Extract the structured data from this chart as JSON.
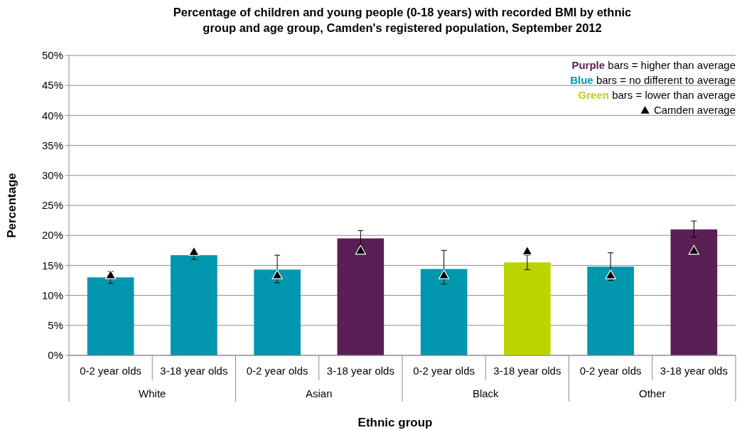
{
  "chart_data": {
    "type": "bar",
    "title": "Percentage of children and young people (0-18 years) with recorded BMI by ethnic group and age group, Camden's registered population, September 2012",
    "xlabel": "Ethnic group",
    "ylabel": "Percentage",
    "categories": [
      "0-2 year olds",
      "3-18 year olds",
      "0-2 year olds",
      "3-18 year olds",
      "0-2 year olds",
      "3-18 year olds",
      "0-2 year olds",
      "3-18 year olds"
    ],
    "series": [
      {
        "values": [
          13.0,
          16.7,
          14.3,
          19.5,
          14.4,
          15.5,
          14.8,
          21.0
        ],
        "colors": [
          "#0096ad",
          "#0096ad",
          "#0096ad",
          "#5a1f55",
          "#0096ad",
          "#bcd400",
          "#0096ad",
          "#5a1f55"
        ],
        "errors": [
          [
            12.0,
            14.0
          ],
          [
            16.0,
            17.3
          ],
          [
            12.1,
            16.7
          ],
          [
            18.4,
            20.8
          ],
          [
            11.9,
            17.5
          ],
          [
            14.3,
            16.7
          ],
          [
            12.5,
            17.1
          ],
          [
            19.7,
            22.4
          ]
        ]
      },
      {
        "type": "scatter",
        "name": "Camden average",
        "color": "#000000",
        "marker": "triangle",
        "values": [
          13.4,
          17.3,
          13.4,
          17.5,
          13.4,
          17.4,
          13.4,
          17.5
        ]
      }
    ],
    "annotations": [
      "Purple bars = higher than average",
      "Blue bars = no different to average",
      "Green bars = lower than average",
      "White",
      "Asian",
      "Black",
      "Other"
    ],
    "ylim": [
      0,
      50
    ],
    "yticks": [
      {
        "value": 0,
        "label": "0%"
      },
      {
        "value": 5,
        "label": "5%"
      },
      {
        "value": 10,
        "label": "10%"
      },
      {
        "value": 15,
        "label": "15%"
      },
      {
        "value": 20,
        "label": "20%"
      },
      {
        "value": 25,
        "label": "25%"
      },
      {
        "value": 30,
        "label": "30%"
      },
      {
        "value": 35,
        "label": "35%"
      },
      {
        "value": 40,
        "label": "40%"
      },
      {
        "value": 45,
        "label": "45%"
      },
      {
        "value": 50,
        "label": "50%"
      }
    ],
    "grid": "y",
    "legend": "top right"
  }
}
